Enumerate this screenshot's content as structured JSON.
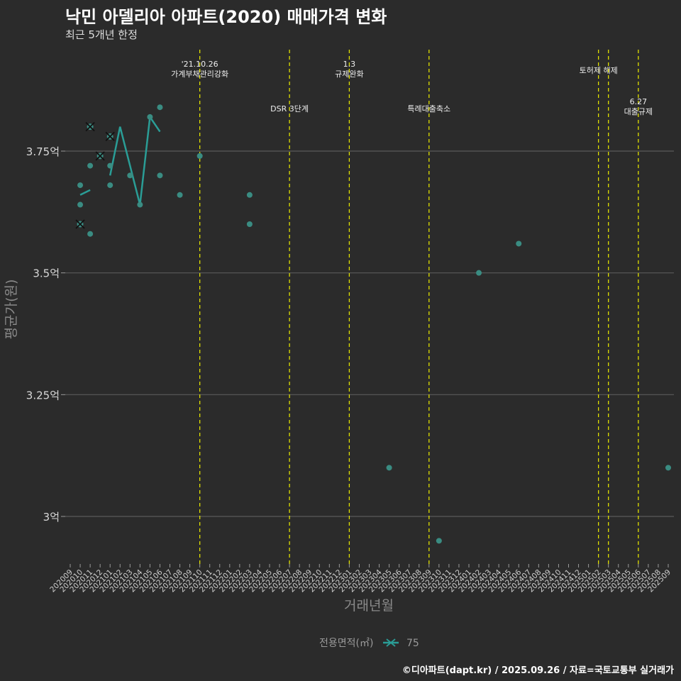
{
  "title": "낙민 아델리아 아파트(2020) 매매가격 변화",
  "subtitle": "최근 5개년 한정",
  "caption": "©디아파트(dapt.kr) / 2025.09.26 / 자료=국토교통부 실거래가",
  "colors": {
    "background": "#2b2b2b",
    "series": "#2a9d96",
    "point": "#3a8c82",
    "event_line": "#e0e000",
    "grid": "#5a5a5a"
  },
  "chart_data": {
    "type": "scatter",
    "xlabel": "거래년월",
    "ylabel": "평균가(원)",
    "categories": [
      "202009",
      "202010",
      "202011",
      "202012",
      "202101",
      "202102",
      "202103",
      "202104",
      "202105",
      "202106",
      "202107",
      "202108",
      "202109",
      "202110",
      "202111",
      "202112",
      "202201",
      "202202",
      "202203",
      "202204",
      "202205",
      "202206",
      "202207",
      "202208",
      "202209",
      "202210",
      "202211",
      "202212",
      "202301",
      "202302",
      "202303",
      "202304",
      "202305",
      "202306",
      "202307",
      "202308",
      "202309",
      "202310",
      "202311",
      "202312",
      "202401",
      "202402",
      "202403",
      "202404",
      "202405",
      "202406",
      "202407",
      "202408",
      "202409",
      "202410",
      "202411",
      "202412",
      "202501",
      "202502",
      "202503",
      "202504",
      "202505",
      "202506",
      "202507",
      "202508",
      "202509"
    ],
    "yticks": [
      {
        "value": 3.0,
        "label": "3억"
      },
      {
        "value": 3.25,
        "label": "3.25억"
      },
      {
        "value": 3.5,
        "label": "3.5억"
      },
      {
        "value": 3.75,
        "label": "3.75억"
      }
    ],
    "ylim": [
      2.9,
      3.98
    ],
    "points": [
      {
        "x": "202010",
        "y": 3.68
      },
      {
        "x": "202010",
        "y": 3.64
      },
      {
        "x": "202011",
        "y": 3.72
      },
      {
        "x": "202011",
        "y": 3.58
      },
      {
        "x": "202101",
        "y": 3.72
      },
      {
        "x": "202101",
        "y": 3.68
      },
      {
        "x": "202103",
        "y": 3.7
      },
      {
        "x": "202104",
        "y": 3.64
      },
      {
        "x": "202105",
        "y": 3.82
      },
      {
        "x": "202106",
        "y": 3.84
      },
      {
        "x": "202106",
        "y": 3.7
      },
      {
        "x": "202108",
        "y": 3.66
      },
      {
        "x": "202110",
        "y": 3.74
      },
      {
        "x": "202203",
        "y": 3.66
      },
      {
        "x": "202203",
        "y": 3.6
      },
      {
        "x": "202305",
        "y": 3.1
      },
      {
        "x": "202310",
        "y": 2.95
      },
      {
        "x": "202402",
        "y": 3.5
      },
      {
        "x": "202406",
        "y": 3.56
      },
      {
        "x": "202509",
        "y": 3.1
      }
    ],
    "markers": [
      {
        "x": "202010",
        "y": 3.6
      },
      {
        "x": "202011",
        "y": 3.8
      },
      {
        "x": "202012",
        "y": 3.74
      },
      {
        "x": "202101",
        "y": 3.78
      }
    ],
    "line": [
      {
        "x": "202010",
        "y": 3.66
      },
      {
        "x": "202011",
        "y": 3.67
      },
      {
        "x": "202101",
        "y": 3.7
      },
      {
        "x": "202102",
        "y": 3.8
      },
      {
        "x": "202103",
        "y": 3.72
      },
      {
        "x": "202104",
        "y": 3.64
      },
      {
        "x": "202105",
        "y": 3.82
      },
      {
        "x": "202106",
        "y": 3.79
      }
    ],
    "line_breaks": [
      "202101"
    ],
    "events": [
      {
        "x": "202110",
        "label": "'21.10.26\n가계부채관리강화",
        "row": 1
      },
      {
        "x": "202207",
        "label": "DSR 3단계",
        "row": 2
      },
      {
        "x": "202301",
        "label": "1.3\n규제완화",
        "row": 1
      },
      {
        "x": "202309",
        "label": "특례대출축소",
        "row": 2
      },
      {
        "x": "202502",
        "label": "토허제 해제",
        "row": 1
      },
      {
        "x": "202503",
        "label": "",
        "row": 1
      },
      {
        "x": "202506",
        "label": "6.27\n대출규제",
        "row": 3
      }
    ],
    "legend": {
      "title": "전용면적(㎡)",
      "entries": [
        "75"
      ]
    }
  }
}
